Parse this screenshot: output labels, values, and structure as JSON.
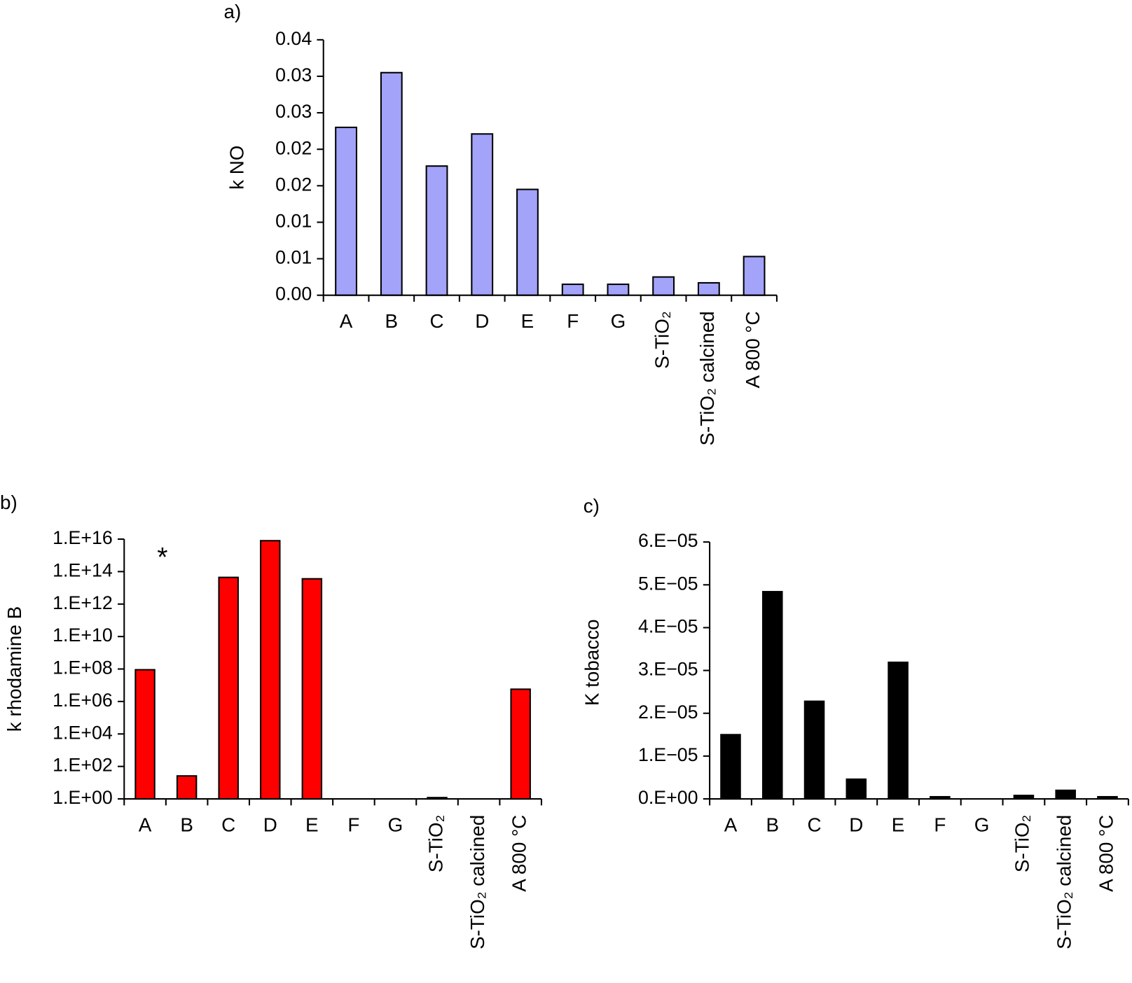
{
  "chart_data": [
    {
      "type": "bar",
      "label": "a)",
      "y_label": "k NO",
      "color": "#a3a3fa",
      "categories": [
        "A",
        "B",
        "C",
        "D",
        "E",
        "F",
        "G",
        "S-TiO₂",
        "S-TiO₂ calcined",
        "A 800 °C"
      ],
      "values": [
        0.023,
        0.0305,
        0.0177,
        0.0221,
        0.0145,
        0.0015,
        0.0015,
        0.0025,
        0.0017,
        0.0053
      ],
      "ylim": [
        0,
        0.035
      ],
      "yticks": [
        {
          "value": 0,
          "label": "0.00"
        },
        {
          "value": 0.005,
          "label": "0.01"
        },
        {
          "value": 0.01,
          "label": "0.01"
        },
        {
          "value": 0.015,
          "label": "0.02"
        },
        {
          "value": 0.02,
          "label": "0.02"
        },
        {
          "value": 0.025,
          "label": "0.03"
        },
        {
          "value": 0.03,
          "label": "0.03"
        },
        {
          "value": 0.035,
          "label": "0.04"
        }
      ]
    },
    {
      "type": "bar",
      "label": "b)",
      "y_label": "k rhodamine B",
      "color": "#ff0000",
      "yscale": "log",
      "annotation": "*",
      "categories": [
        "A",
        "B",
        "C",
        "D",
        "E",
        "F",
        "G",
        "S-TiO₂",
        "S-TiO₂ calcined",
        "A 800 °C"
      ],
      "values": [
        90000000,
        26,
        44000000000000,
        8000000000000000,
        36000000000000,
        null,
        null,
        1.2,
        null,
        5700000
      ],
      "ylim": [
        1,
        10000000000000000
      ],
      "yticks": [
        {
          "value": 1,
          "label": "1.E+00"
        },
        {
          "value": 100,
          "label": "1.E+02"
        },
        {
          "value": 10000,
          "label": "1.E+04"
        },
        {
          "value": 1000000,
          "label": "1.E+06"
        },
        {
          "value": 100000000,
          "label": "1.E+08"
        },
        {
          "value": 10000000000,
          "label": "1.E+10"
        },
        {
          "value": 1000000000000,
          "label": "1.E+12"
        },
        {
          "value": 100000000000000,
          "label": "1.E+14"
        },
        {
          "value": 10000000000000000,
          "label": "1.E+16"
        }
      ]
    },
    {
      "type": "bar",
      "label": "c)",
      "y_label": "K tobacco",
      "color": "#000000",
      "categories": [
        "A",
        "B",
        "C",
        "D",
        "E",
        "F",
        "G",
        "S-TiO₂",
        "S-TiO₂ calcined",
        "A 800 °C"
      ],
      "values": [
        1.5e-05,
        4.84e-05,
        2.28e-05,
        4.6e-06,
        3.19e-05,
        5e-07,
        0,
        8e-07,
        2e-06,
        5e-07
      ],
      "ylim": [
        0,
        6e-05
      ],
      "yticks": [
        {
          "value": 0,
          "label": "0.E+00"
        },
        {
          "value": 1e-05,
          "label": "1.E−05"
        },
        {
          "value": 2e-05,
          "label": "2.E−05"
        },
        {
          "value": 3e-05,
          "label": "3.E−05"
        },
        {
          "value": 4e-05,
          "label": "4.E−05"
        },
        {
          "value": 5e-05,
          "label": "5.E−05"
        },
        {
          "value": 6e-05,
          "label": "6.E−05"
        }
      ]
    }
  ]
}
